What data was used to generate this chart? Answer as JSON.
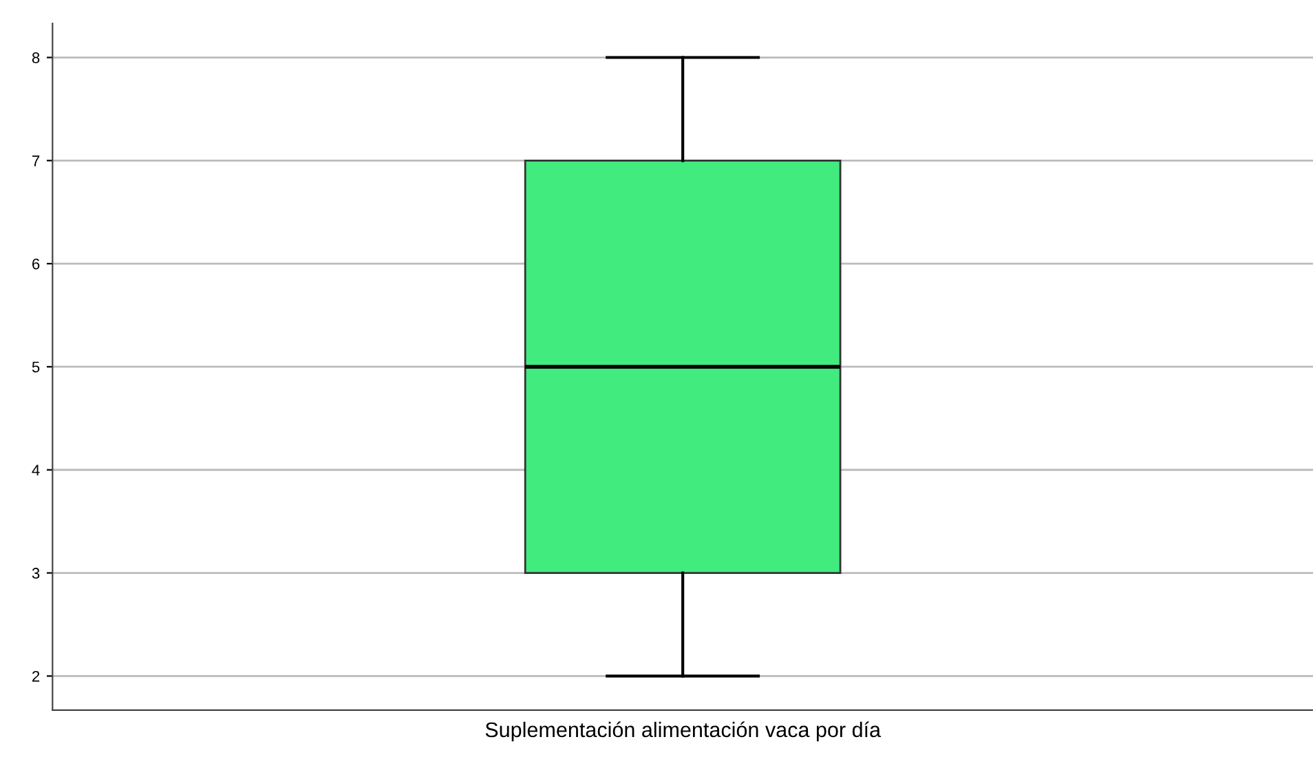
{
  "chart_data": {
    "type": "box",
    "categories": [
      "Suplementación alimentación vaca por día"
    ],
    "boxes": [
      {
        "low": 2,
        "q1": 3,
        "median": 5,
        "q3": 7,
        "high": 8
      }
    ],
    "color": "#41eb7e",
    "ylim": [
      1.67,
      8.33
    ],
    "yticks": [
      2,
      3,
      4,
      5,
      6,
      7,
      8
    ],
    "grid": "y"
  }
}
